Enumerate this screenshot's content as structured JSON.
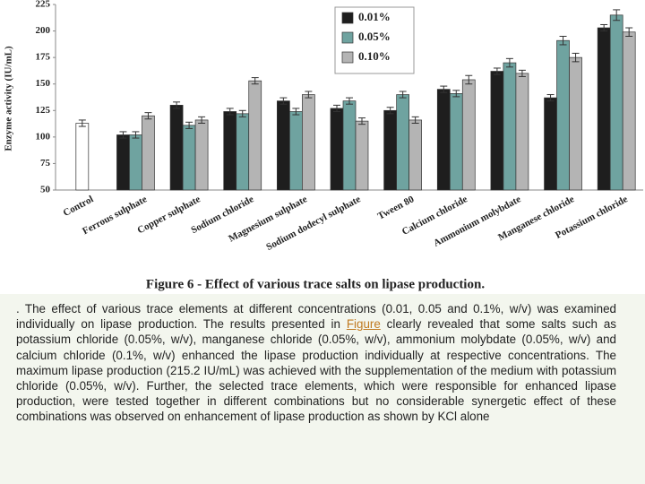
{
  "chart_data": {
    "type": "bar",
    "title": "Figure 6 - Effect of various trace salts on lipase production.",
    "y_label": "Enzyme activity (IU/mL)",
    "categories": [
      "Control",
      "Ferrous sulphate",
      "Copper sulphate",
      "Sodium chloride",
      "Magnesium sulphate",
      "Sodium dodecyl sulphate",
      "Tween 80",
      "Calcium chloride",
      "Ammonium molybdate",
      "Manganese chloride",
      "Potassium chloride"
    ],
    "control": {
      "value": 113,
      "error": 3,
      "color": "#ffffff"
    },
    "series": [
      {
        "name": "0.01%",
        "color": "#1e1e1e",
        "values": [
          null,
          102,
          130,
          124,
          134,
          127,
          125,
          145,
          162,
          137,
          203
        ],
        "errors": [
          null,
          3,
          3,
          3,
          3,
          3,
          3,
          3,
          3,
          3,
          3
        ]
      },
      {
        "name": "0.05%",
        "color": "#6fa3a0",
        "values": [
          null,
          102,
          111,
          122,
          124,
          134,
          140,
          141,
          170,
          191,
          215
        ],
        "errors": [
          null,
          3,
          3,
          3,
          3,
          3,
          3,
          3,
          4,
          4,
          5
        ]
      },
      {
        "name": "0.10%",
        "color": "#b4b4b4",
        "values": [
          null,
          120,
          116,
          153,
          140,
          115,
          116,
          154,
          160,
          175,
          199
        ],
        "errors": [
          null,
          3,
          3,
          3,
          3,
          3,
          3,
          4,
          3,
          4,
          4
        ]
      }
    ],
    "ylim": [
      50,
      225
    ],
    "yticks": [
      50,
      75,
      100,
      125,
      150,
      175,
      200,
      225
    ],
    "grid": false,
    "legend": "top-center"
  },
  "text": {
    "before": ". The effect of various trace elements at different concentrations (0.01, 0.05 and 0.1%, w/v) was examined individually on lipase production. The results presented in ",
    "link": "Figure",
    "after": " clearly revealed that some salts such as potassium chloride (0.05%, w/v), manganese chloride (0.05%, w/v), ammonium molybdate (0.05%, w/v) and calcium chloride (0.1%, w/v) enhanced the lipase production individually at respective concentrations. The maximum lipase production (215.2 IU/mL) was achieved with the supplementation of the medium with potassium chloride (0.05%, w/v). Further, the selected trace elements, which were responsible for enhanced lipase production, were tested together in different combinations but no considerable synergetic effect of these combinations was observed on enhancement of lipase production as shown by KCl alone"
  }
}
